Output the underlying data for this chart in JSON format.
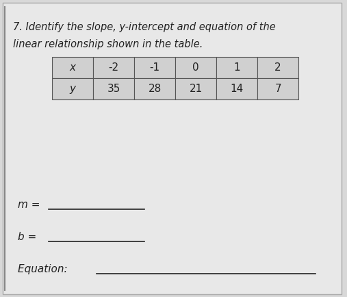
{
  "title_line1": "7. Identify the slope, y-intercept and equation of the",
  "title_line2": "linear relationship shown in the table.",
  "table_x_label": "x",
  "table_y_label": "y",
  "x_values": [
    "-2",
    "-1",
    "0",
    "1",
    "2"
  ],
  "y_values": [
    "35",
    "28",
    "21",
    "14",
    "7"
  ],
  "m_label": "m = ",
  "b_label": "b = ",
  "eq_label": "Equation: ",
  "bg_color": "#d8d8d8",
  "paper_color": "#e8e8e8",
  "table_bg": "#d0d0d0",
  "line_color": "#555555",
  "text_color": "#222222",
  "title_fontsize": 10.5,
  "label_fontsize": 11,
  "table_fontsize": 11
}
